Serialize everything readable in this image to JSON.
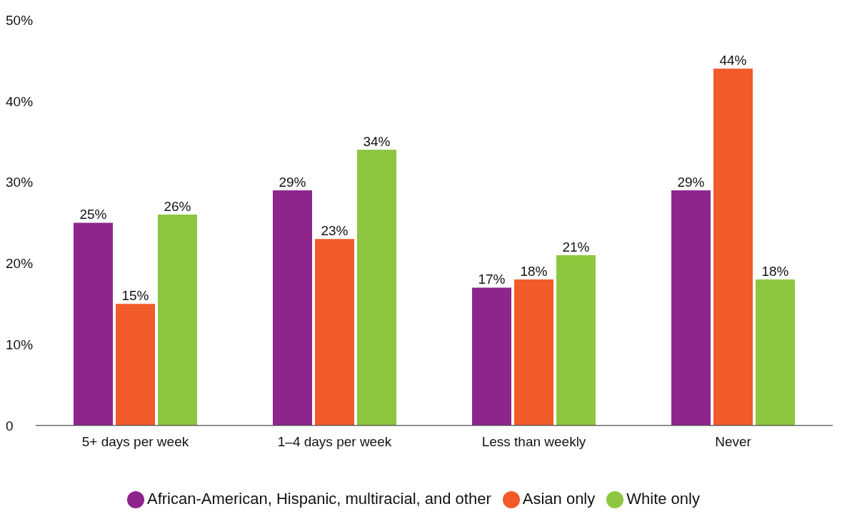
{
  "chart_data": {
    "type": "bar",
    "categories": [
      "5+ days per week",
      "1–4 days per week",
      "Less than weekly",
      "Never"
    ],
    "series": [
      {
        "name": "African-American, Hispanic, multiracial, and other",
        "color": "#8e258d",
        "values": [
          25,
          29,
          17,
          29
        ],
        "value_labels": [
          "25%",
          "29%",
          "17%",
          "29%"
        ]
      },
      {
        "name": "Asian only",
        "color": "#f15a29",
        "values": [
          15,
          23,
          18,
          44
        ],
        "value_labels": [
          "15%",
          "23%",
          "18%",
          "44%"
        ]
      },
      {
        "name": "White only",
        "color": "#8dc63f",
        "values": [
          26,
          34,
          21,
          18
        ],
        "value_labels": [
          "26%",
          "34%",
          "21%",
          "18%"
        ]
      }
    ],
    "ylim": [
      0,
      50
    ],
    "yticks": [
      {
        "value": 0,
        "label": "0"
      },
      {
        "value": 10,
        "label": "10%"
      },
      {
        "value": 20,
        "label": "20%"
      },
      {
        "value": 30,
        "label": "30%"
      },
      {
        "value": 40,
        "label": "40%"
      },
      {
        "value": 50,
        "label": "50%"
      }
    ],
    "grid": false,
    "legend": "bottom"
  }
}
